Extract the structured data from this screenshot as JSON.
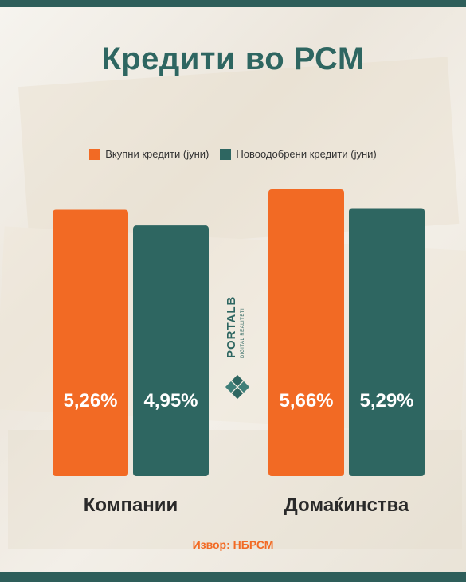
{
  "colors": {
    "orange": "#f26a24",
    "teal": "#2e6661",
    "title": "#2e6661",
    "source": "#f26a24",
    "frame": "#2e5e5a"
  },
  "title": "Кредити во РСМ",
  "logo": {
    "name": "PORTALB",
    "tagline": "DIGITAL REALITETI"
  },
  "source": "Извор: НБРСМ",
  "chart_data": {
    "type": "bar",
    "categories": [
      "Компании",
      "Домаќинства"
    ],
    "series": [
      {
        "name": "Вкупни кредити (јуни)",
        "values": [
          5.26,
          5.66
        ],
        "labels": [
          "5,26%",
          "5,66%"
        ],
        "color": "#f26a24"
      },
      {
        "name": "Новоодобрени кредити (јуни)",
        "values": [
          4.95,
          5.29
        ],
        "labels": [
          "4,95%",
          "5,29%"
        ],
        "color": "#2e6661"
      }
    ],
    "ylim": [
      0,
      6
    ],
    "legend_position": "top-center",
    "grid": false
  }
}
